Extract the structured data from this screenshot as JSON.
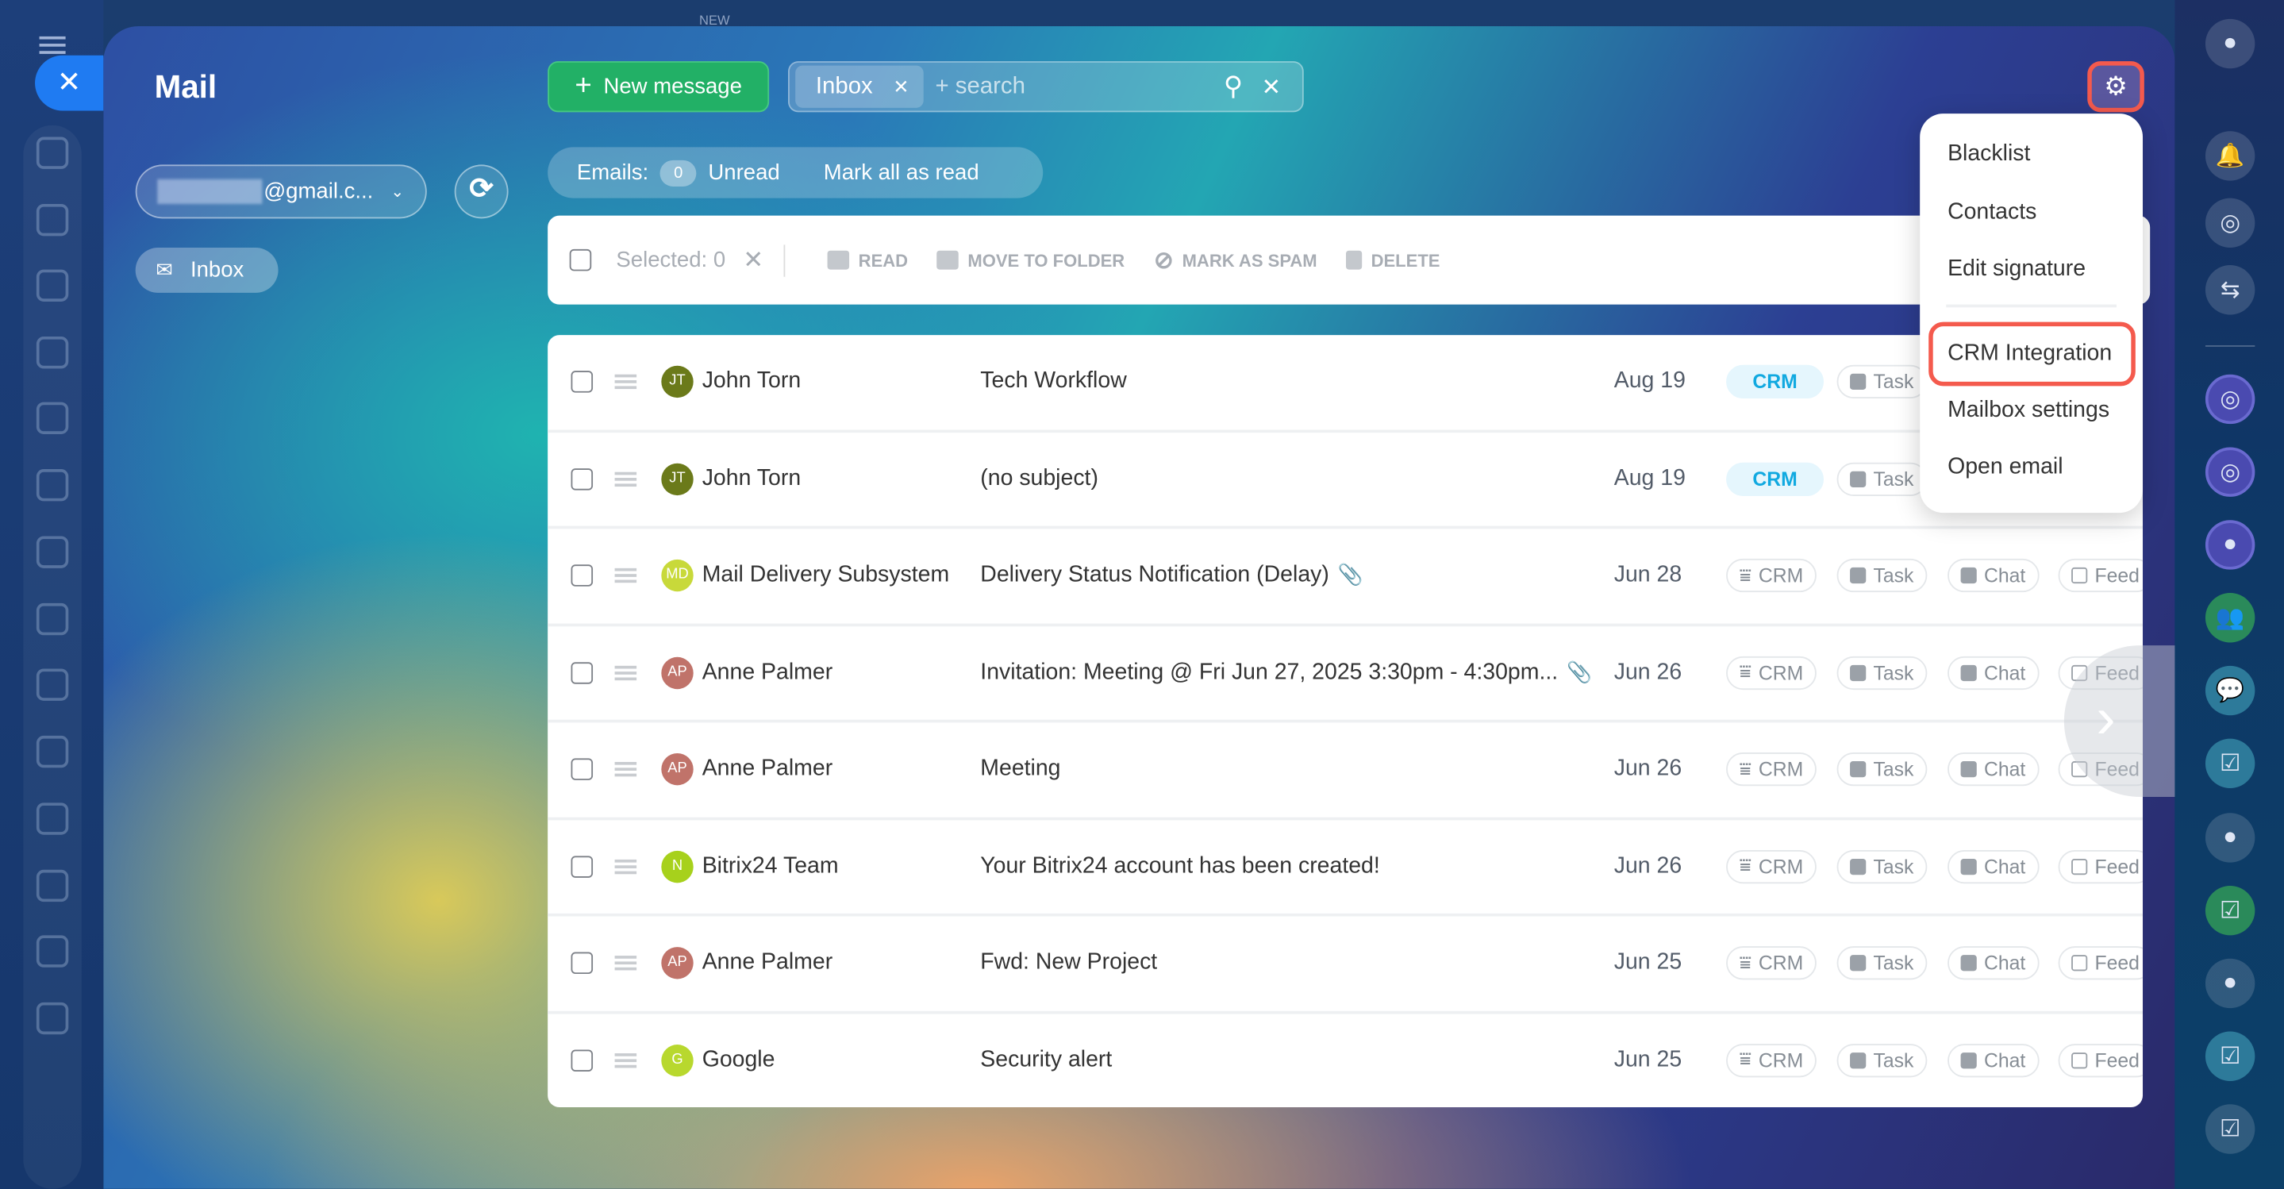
{
  "app": {
    "title": "Mail",
    "top_badge": "NEW"
  },
  "sidebar": {
    "account": "@gmail.c...",
    "folder": "Inbox"
  },
  "header": {
    "new_message": "New message",
    "search_chip": "Inbox",
    "search_placeholder": "+ search"
  },
  "counts": {
    "emails_label": "Emails:",
    "unread_count": "0",
    "unread_label": "Unread",
    "mark_all": "Mark all as read"
  },
  "toolbar": {
    "selected": "Selected: 0",
    "read": "READ",
    "move": "MOVE TO FOLDER",
    "spam": "MARK AS SPAM",
    "delete": "DELETE"
  },
  "pills": {
    "crm": "CRM",
    "task": "Task",
    "chat": "Chat",
    "feed": "Feed"
  },
  "emails": [
    {
      "initials": "JT",
      "color": "#6b7a1a",
      "sender": "John Torn",
      "subject": "Tech Workflow",
      "date": "Aug 19",
      "crm_added": true,
      "attachment": false
    },
    {
      "initials": "JT",
      "color": "#6b7a1a",
      "sender": "John Torn",
      "subject": "(no subject)",
      "date": "Aug 19",
      "crm_added": true,
      "attachment": false
    },
    {
      "initials": "MD",
      "color": "#c8d93a",
      "sender": "Mail Delivery Subsystem",
      "subject": "Delivery Status Notification (Delay)",
      "date": "Jun 28",
      "crm_added": false,
      "attachment": true
    },
    {
      "initials": "AP",
      "color": "#c0736a",
      "sender": "Anne Palmer",
      "subject": "Invitation: Meeting @ Fri Jun 27, 2025 3:30pm - 4:30pm...",
      "date": "Jun 26",
      "crm_added": false,
      "attachment": true
    },
    {
      "initials": "AP",
      "color": "#c0736a",
      "sender": "Anne Palmer",
      "subject": "Meeting",
      "date": "Jun 26",
      "crm_added": false,
      "attachment": false
    },
    {
      "initials": "N",
      "color": "#a7d11c",
      "sender": "Bitrix24 Team",
      "subject": "Your Bitrix24 account has been created!",
      "date": "Jun 26",
      "crm_added": false,
      "attachment": false
    },
    {
      "initials": "AP",
      "color": "#c0736a",
      "sender": "Anne Palmer",
      "subject": "Fwd: New Project",
      "date": "Jun 25",
      "crm_added": false,
      "attachment": false
    },
    {
      "initials": "G",
      "color": "#b8d82e",
      "sender": "Google",
      "subject": "Security alert",
      "date": "Jun 25",
      "crm_added": false,
      "attachment": false
    }
  ],
  "settings_menu": {
    "items": [
      "Blacklist",
      "Contacts",
      "Edit signature",
      "CRM Integration",
      "Mailbox settings",
      "Open email"
    ],
    "highlighted": "CRM Integration"
  },
  "colors": {
    "accent_green": "#22b066",
    "highlight_red": "#f45a4d",
    "crm_blue": "#11a9e0",
    "close_blue": "#1f7bf2"
  }
}
